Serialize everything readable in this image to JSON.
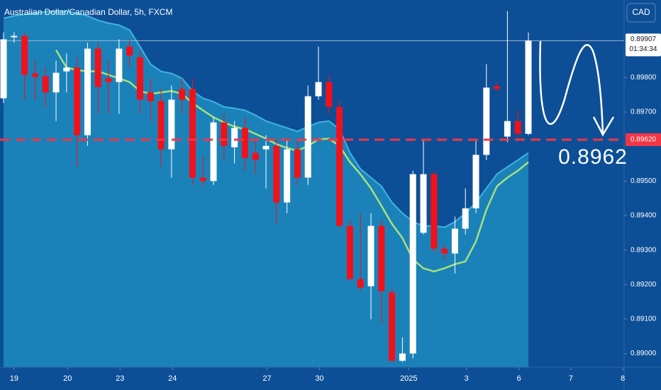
{
  "chart_data": {
    "type": "candlestick",
    "title": "Australian Dollar/Canadian Dollar, 5h, FXCM",
    "currency_button": "CAD",
    "open": [
      0.8974,
      0.89917,
      0.89921,
      0.89812,
      0.89804,
      0.89757,
      0.89818,
      0.89829,
      0.89633,
      0.89884,
      0.89798,
      0.89787,
      0.8989,
      0.89859,
      0.89757,
      0.89732,
      0.89592,
      0.89767,
      0.89767,
      0.8951,
      0.895,
      0.8967,
      0.89598,
      0.89654,
      0.89582,
      0.89592,
      0.89602,
      0.89438,
      0.89592,
      0.8951,
      0.89746,
      0.89787,
      0.89715,
      0.8937,
      0.89216,
      0.89195,
      0.8937,
      0.89177,
      0.88979,
      0.89,
      0.8935,
      0.8952,
      0.89304,
      0.8929,
      0.89362,
      0.89421,
      0.89576,
      0.89775,
      0.89629,
      0.89674,
      0.89637
    ],
    "high": [
      0.89931,
      0.89931,
      0.89931,
      0.89849,
      0.89829,
      0.89849,
      0.8987,
      0.89859,
      0.89901,
      0.89901,
      0.89849,
      0.89911,
      0.89911,
      0.8988,
      0.89798,
      0.89767,
      0.89777,
      0.89798,
      0.89798,
      0.89572,
      0.89685,
      0.89695,
      0.89674,
      0.89685,
      0.89623,
      0.89633,
      0.89623,
      0.89623,
      0.89623,
      0.89777,
      0.8989,
      0.89808,
      0.89736,
      0.89387,
      0.89407,
      0.89407,
      0.89387,
      0.89191,
      0.89047,
      0.8953,
      0.89623,
      0.8953,
      0.89315,
      0.89397,
      0.89479,
      0.89623,
      0.89839,
      0.89787,
      0.89993,
      0.89705,
      0.89931
    ],
    "low": [
      0.89726,
      0.89901,
      0.89736,
      0.89736,
      0.89715,
      0.89674,
      0.89757,
      0.89541,
      0.89602,
      0.89695,
      0.89695,
      0.89695,
      0.89829,
      0.89695,
      0.89674,
      0.89541,
      0.8951,
      0.89695,
      0.89489,
      0.89485,
      0.89489,
      0.89561,
      0.89551,
      0.8953,
      0.8952,
      0.89479,
      0.89376,
      0.89407,
      0.89489,
      0.89489,
      0.89736,
      0.89695,
      0.89366,
      0.89212,
      0.89181,
      0.89099,
      0.89088,
      0.88975,
      0.88975,
      0.88986,
      0.89345,
      0.89294,
      0.89273,
      0.89232,
      0.89345,
      0.89407,
      0.89561,
      0.8976,
      0.89613,
      0.89623,
      0.89633
    ],
    "close": [
      0.89911,
      0.89921,
      0.89808,
      0.89802,
      0.89757,
      0.89814,
      0.89829,
      0.89633,
      0.89884,
      0.89773,
      0.89787,
      0.89884,
      0.89864,
      0.89736,
      0.89732,
      0.89592,
      0.89736,
      0.89736,
      0.8951,
      0.895,
      0.8967,
      0.89602,
      0.89654,
      0.89567,
      0.89561,
      0.89602,
      0.89438,
      0.89592,
      0.8951,
      0.89746,
      0.89787,
      0.89715,
      0.8937,
      0.89216,
      0.89191,
      0.8937,
      0.89181,
      0.88979,
      0.89,
      0.8952,
      0.8952,
      0.89304,
      0.8929,
      0.89362,
      0.89421,
      0.89576,
      0.89771,
      0.89767,
      0.89674,
      0.89637,
      0.89907
    ],
    "up_color": "#ffffff",
    "down_color": "#f2111a",
    "band_upper": {
      "color": "#3fb3e0",
      "fill": "#1a82b9",
      "values": [
        0.89972,
        0.89979,
        0.89983,
        0.89987,
        0.89991,
        0.89993,
        0.89993,
        0.89987,
        0.89979,
        0.89966,
        0.89958,
        0.89952,
        0.89938,
        0.8989,
        0.89839,
        0.89818,
        0.89812,
        0.89798,
        0.89761,
        0.8974,
        0.8973,
        0.89715,
        0.89711,
        0.89705,
        0.89691,
        0.89674,
        0.89664,
        0.89654,
        0.89644,
        0.89658,
        0.8967,
        0.89674,
        0.8965,
        0.89582,
        0.89535,
        0.8951,
        0.89485,
        0.89438,
        0.89407,
        0.89382,
        0.8937,
        0.8937,
        0.89366,
        0.89382,
        0.89407,
        0.89438,
        0.89479,
        0.8952,
        0.89541,
        0.89561,
        0.89582
      ]
    },
    "moving_average": {
      "color": "#a6e07e",
      "values": [
        null,
        null,
        null,
        null,
        null,
        0.8988,
        0.89829,
        0.89822,
        0.89818,
        0.89818,
        0.89808,
        0.89798,
        0.89787,
        0.89761,
        0.89753,
        0.89757,
        0.89761,
        0.89753,
        0.89726,
        0.89705,
        0.89685,
        0.8967,
        0.89658,
        0.8965,
        0.89637,
        0.89623,
        0.89607,
        0.89596,
        0.89588,
        0.89602,
        0.89621,
        0.89623,
        0.89602,
        0.89555,
        0.8952,
        0.89479,
        0.89428,
        0.89376,
        0.89335,
        0.89273,
        0.89247,
        0.89238,
        0.89247,
        0.89259,
        0.89267,
        0.89325,
        0.89417,
        0.89485,
        0.8951,
        0.8953,
        0.89555
      ]
    },
    "price_line": {
      "value": 0.8962,
      "label": "0.89620",
      "color": "#f23645"
    },
    "last_price": {
      "value": 0.89907,
      "label": "0.89907",
      "countdown": "01:34:34"
    },
    "annotation": "0.8962",
    "xlim": [
      -0.34,
      59.12
    ],
    "xticks": [
      {
        "value": 1.0,
        "label": "19"
      },
      {
        "value": 6.1,
        "label": "20"
      },
      {
        "value": 11.1,
        "label": "23"
      },
      {
        "value": 16.1,
        "label": "24"
      },
      {
        "value": 25.1,
        "label": "27"
      },
      {
        "value": 30.1,
        "label": "30"
      },
      {
        "value": 38.6,
        "label": "2025"
      },
      {
        "value": 44.1,
        "label": "3"
      },
      {
        "value": 49.1,
        "label": "6"
      },
      {
        "value": 54.05,
        "label": "7"
      },
      {
        "value": 59.0,
        "label": "8"
      }
    ],
    "ylim": [
      0.8896,
      0.90025
    ],
    "yticks": [
      {
        "value": 0.89,
        "label": "0.89000"
      },
      {
        "value": 0.891,
        "label": "0.89100"
      },
      {
        "value": 0.892,
        "label": "0.89200"
      },
      {
        "value": 0.893,
        "label": "0.89300"
      },
      {
        "value": 0.894,
        "label": "0.89400"
      },
      {
        "value": 0.895,
        "label": "0.89500"
      },
      {
        "value": 0.897,
        "label": "0.89700"
      },
      {
        "value": 0.898,
        "label": "0.89800"
      }
    ]
  }
}
